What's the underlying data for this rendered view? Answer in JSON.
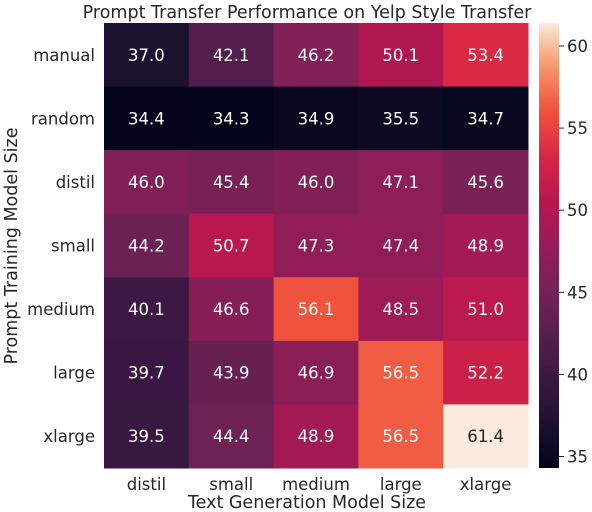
{
  "chart_data": {
    "type": "heatmap",
    "title": "Prompt Transfer Performance on Yelp Style Transfer",
    "xlabel": "Text Generation Model Size",
    "ylabel": "Prompt Training Model Size",
    "x_categories": [
      "distil",
      "small",
      "medium",
      "large",
      "xlarge"
    ],
    "y_categories": [
      "manual",
      "random",
      "distil",
      "small",
      "medium",
      "large",
      "xlarge"
    ],
    "values": [
      [
        37.0,
        42.1,
        46.2,
        50.1,
        53.4
      ],
      [
        34.4,
        34.3,
        34.9,
        35.5,
        34.7
      ],
      [
        46.0,
        45.4,
        46.0,
        47.1,
        45.6
      ],
      [
        44.2,
        50.7,
        47.3,
        47.4,
        48.9
      ],
      [
        40.1,
        46.6,
        56.1,
        48.5,
        51.0
      ],
      [
        39.7,
        43.9,
        46.9,
        56.5,
        52.2
      ],
      [
        39.5,
        44.4,
        48.9,
        56.5,
        61.4
      ]
    ],
    "colorbar": {
      "min": 34.3,
      "max": 61.4,
      "ticks": [
        35,
        40,
        45,
        50,
        55,
        60
      ],
      "colormap": "rocket"
    }
  }
}
